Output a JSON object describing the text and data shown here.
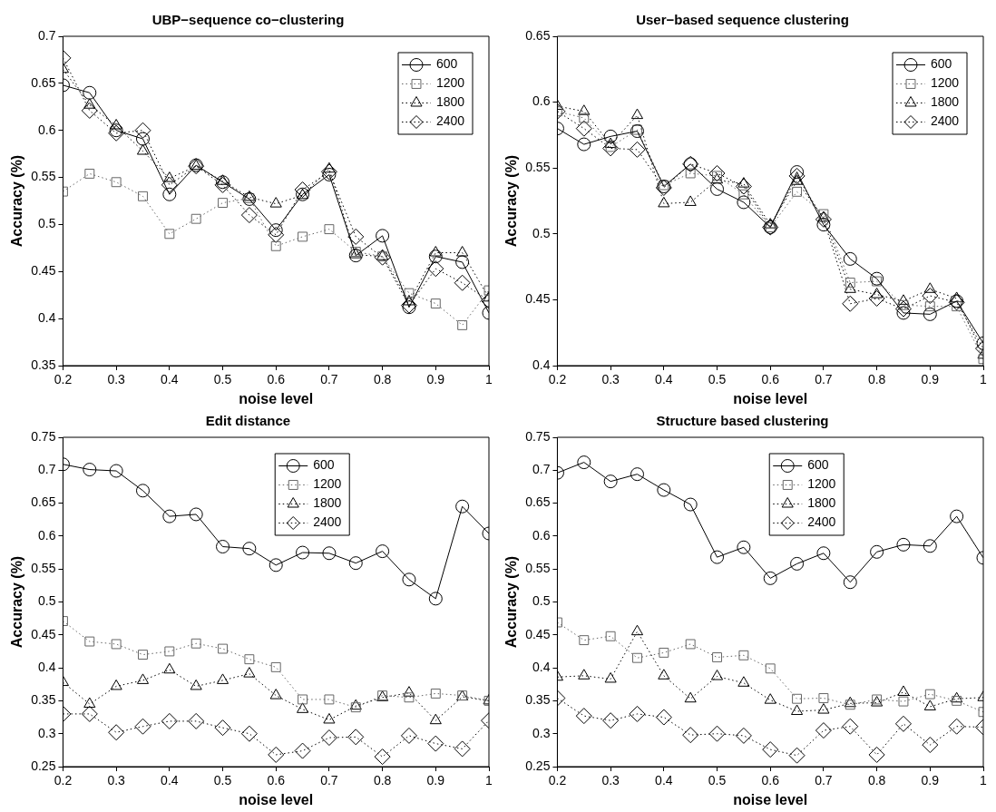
{
  "chart_data": [
    {
      "type": "line",
      "title": "UBP−sequence co−clustering",
      "xlabel": "noise level",
      "ylabel": "Accuracy (%)",
      "x": [
        0.2,
        0.25,
        0.3,
        0.35,
        0.4,
        0.45,
        0.5,
        0.55,
        0.6,
        0.65,
        0.7,
        0.75,
        0.8,
        0.85,
        0.9,
        0.95,
        1
      ],
      "xlim": [
        0.2,
        1
      ],
      "xticks": [
        0.2,
        0.3,
        0.4,
        0.5,
        0.6,
        0.7,
        0.8,
        0.9,
        1
      ],
      "ylim": [
        0.35,
        0.7
      ],
      "yticks": [
        0.35,
        0.4,
        0.45,
        0.5,
        0.55,
        0.6,
        0.65,
        0.7
      ],
      "grid": false,
      "legend": "top right",
      "series": [
        {
          "name": "600",
          "color": "#000000",
          "marker": "circle",
          "line_style": "solid",
          "values": [
            0.648,
            0.64,
            0.6,
            0.591,
            0.532,
            0.563,
            0.545,
            0.527,
            0.494,
            0.532,
            0.553,
            0.467,
            0.488,
            0.412,
            0.466,
            0.46,
            0.406
          ]
        },
        {
          "name": "1200",
          "color": "#666666",
          "marker": "square",
          "line_style": "dotted",
          "values": [
            0.535,
            0.554,
            0.545,
            0.53,
            0.49,
            0.506,
            0.523,
            0.528,
            0.477,
            0.487,
            0.495,
            0.471,
            0.466,
            0.427,
            0.416,
            0.393,
            0.43
          ]
        },
        {
          "name": "1800",
          "color": "#000000",
          "marker": "triangle",
          "line_style": "dotted",
          "values": [
            0.665,
            0.627,
            0.605,
            0.578,
            0.549,
            0.562,
            0.546,
            0.529,
            0.522,
            0.531,
            0.559,
            0.468,
            0.466,
            0.418,
            0.47,
            0.47,
            0.422
          ]
        },
        {
          "name": "2400",
          "color": "#000000",
          "marker": "diamond",
          "line_style": "dotted",
          "values": [
            0.677,
            0.621,
            0.597,
            0.6,
            0.542,
            0.562,
            0.542,
            0.51,
            0.489,
            0.537,
            0.556,
            0.487,
            0.465,
            0.414,
            0.453,
            0.438,
            0.419
          ]
        }
      ]
    },
    {
      "type": "line",
      "title": "User−based sequence clustering",
      "xlabel": "noise level",
      "ylabel": "Accuracy (%)",
      "x": [
        0.2,
        0.25,
        0.3,
        0.35,
        0.4,
        0.45,
        0.5,
        0.55,
        0.6,
        0.65,
        0.7,
        0.75,
        0.8,
        0.85,
        0.9,
        0.95,
        1
      ],
      "xlim": [
        0.2,
        1
      ],
      "xticks": [
        0.2,
        0.3,
        0.4,
        0.5,
        0.6,
        0.7,
        0.8,
        0.9,
        1
      ],
      "ylim": [
        0.4,
        0.65
      ],
      "yticks": [
        0.4,
        0.45,
        0.5,
        0.55,
        0.6,
        0.65
      ],
      "grid": false,
      "legend": "top right",
      "series": [
        {
          "name": "600",
          "color": "#000000",
          "marker": "circle",
          "line_style": "solid",
          "values": [
            0.58,
            0.568,
            0.574,
            0.578,
            0.536,
            0.553,
            0.534,
            0.524,
            0.505,
            0.547,
            0.507,
            0.481,
            0.466,
            0.44,
            0.439,
            0.449,
            0.417
          ]
        },
        {
          "name": "1200",
          "color": "#666666",
          "marker": "square",
          "line_style": "dotted",
          "values": [
            0.593,
            0.588,
            0.566,
            0.579,
            0.537,
            0.546,
            0.544,
            0.53,
            0.505,
            0.532,
            0.515,
            0.463,
            0.464,
            0.446,
            0.445,
            0.445,
            0.405
          ]
        },
        {
          "name": "1800",
          "color": "#000000",
          "marker": "triangle",
          "line_style": "dotted",
          "values": [
            0.597,
            0.593,
            0.568,
            0.59,
            0.523,
            0.524,
            0.541,
            0.538,
            0.507,
            0.54,
            0.512,
            0.458,
            0.454,
            0.449,
            0.458,
            0.451,
            0.408
          ]
        },
        {
          "name": "2400",
          "color": "#000000",
          "marker": "diamond",
          "line_style": "dotted",
          "values": [
            0.593,
            0.58,
            0.565,
            0.564,
            0.535,
            0.553,
            0.546,
            0.536,
            0.505,
            0.544,
            0.511,
            0.447,
            0.451,
            0.443,
            0.453,
            0.448,
            0.413
          ]
        }
      ]
    },
    {
      "type": "line",
      "title": "Edit distance",
      "xlabel": "noise level",
      "ylabel": "Accuracy (%)",
      "x": [
        0.2,
        0.25,
        0.3,
        0.35,
        0.4,
        0.45,
        0.5,
        0.55,
        0.6,
        0.65,
        0.7,
        0.75,
        0.8,
        0.85,
        0.9,
        0.95,
        1
      ],
      "xlim": [
        0.2,
        1
      ],
      "xticks": [
        0.2,
        0.3,
        0.4,
        0.5,
        0.6,
        0.7,
        0.8,
        0.9,
        1
      ],
      "ylim": [
        0.25,
        0.75
      ],
      "yticks": [
        0.25,
        0.3,
        0.35,
        0.4,
        0.45,
        0.5,
        0.55,
        0.6,
        0.65,
        0.7,
        0.75
      ],
      "grid": false,
      "legend": "top",
      "series": [
        {
          "name": "600",
          "color": "#000000",
          "marker": "circle",
          "line_style": "solid",
          "values": [
            0.709,
            0.701,
            0.699,
            0.669,
            0.63,
            0.633,
            0.584,
            0.581,
            0.556,
            0.575,
            0.574,
            0.559,
            0.577,
            0.534,
            0.505,
            0.645,
            0.604
          ]
        },
        {
          "name": "1200",
          "color": "#666666",
          "marker": "square",
          "line_style": "dotted",
          "values": [
            0.471,
            0.44,
            0.436,
            0.42,
            0.425,
            0.437,
            0.429,
            0.413,
            0.401,
            0.352,
            0.352,
            0.34,
            0.358,
            0.355,
            0.361,
            0.358,
            0.35
          ]
        },
        {
          "name": "1800",
          "color": "#000000",
          "marker": "triangle",
          "line_style": "dotted",
          "values": [
            0.378,
            0.345,
            0.372,
            0.381,
            0.397,
            0.372,
            0.381,
            0.391,
            0.358,
            0.337,
            0.321,
            0.342,
            0.355,
            0.362,
            0.32,
            0.356,
            0.35
          ]
        },
        {
          "name": "2400",
          "color": "#000000",
          "marker": "diamond",
          "line_style": "dotted",
          "values": [
            0.33,
            0.33,
            0.302,
            0.311,
            0.319,
            0.319,
            0.309,
            0.3,
            0.268,
            0.274,
            0.294,
            0.295,
            0.265,
            0.297,
            0.285,
            0.277,
            0.32
          ]
        }
      ]
    },
    {
      "type": "line",
      "title": "Structure based clustering",
      "xlabel": "noise level",
      "ylabel": "Accuracy (%)",
      "x": [
        0.2,
        0.25,
        0.3,
        0.35,
        0.4,
        0.45,
        0.5,
        0.55,
        0.6,
        0.65,
        0.7,
        0.75,
        0.8,
        0.85,
        0.9,
        0.95,
        1
      ],
      "xlim": [
        0.2,
        1
      ],
      "xticks": [
        0.2,
        0.3,
        0.4,
        0.5,
        0.6,
        0.7,
        0.8,
        0.9,
        1
      ],
      "ylim": [
        0.25,
        0.75
      ],
      "yticks": [
        0.25,
        0.3,
        0.35,
        0.4,
        0.45,
        0.5,
        0.55,
        0.6,
        0.65,
        0.7,
        0.75
      ],
      "grid": false,
      "legend": "top",
      "series": [
        {
          "name": "600",
          "color": "#000000",
          "marker": "circle",
          "line_style": "solid",
          "values": [
            0.696,
            0.712,
            0.683,
            0.694,
            0.67,
            0.648,
            0.568,
            0.583,
            0.536,
            0.558,
            0.574,
            0.53,
            0.576,
            0.587,
            0.585,
            0.63,
            0.567
          ]
        },
        {
          "name": "1200",
          "color": "#666666",
          "marker": "square",
          "line_style": "dotted",
          "values": [
            0.469,
            0.442,
            0.448,
            0.415,
            0.423,
            0.436,
            0.416,
            0.419,
            0.399,
            0.353,
            0.354,
            0.344,
            0.352,
            0.349,
            0.36,
            0.35,
            0.333
          ]
        },
        {
          "name": "1800",
          "color": "#000000",
          "marker": "triangle",
          "line_style": "dotted",
          "values": [
            0.386,
            0.388,
            0.383,
            0.455,
            0.388,
            0.353,
            0.387,
            0.377,
            0.351,
            0.334,
            0.336,
            0.346,
            0.347,
            0.363,
            0.341,
            0.353,
            0.355
          ]
        },
        {
          "name": "2400",
          "color": "#000000",
          "marker": "diamond",
          "line_style": "dotted",
          "values": [
            0.354,
            0.327,
            0.32,
            0.33,
            0.325,
            0.298,
            0.3,
            0.297,
            0.276,
            0.267,
            0.305,
            0.311,
            0.268,
            0.315,
            0.283,
            0.311,
            0.31
          ]
        }
      ]
    }
  ]
}
